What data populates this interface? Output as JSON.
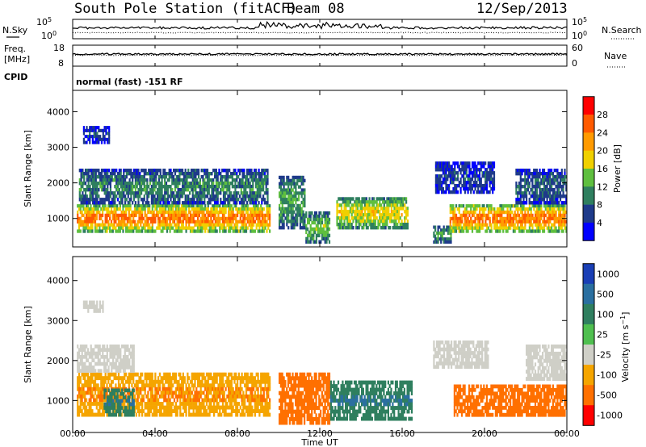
{
  "header": {
    "station": "South Pole Station (fitACF)",
    "beam": "Beam 08",
    "date": "12/Sep/2013"
  },
  "noise_panel": {
    "left_label": "N.Sky",
    "right_label": "N.Search",
    "ticks_left": [
      "10^5",
      "10^0"
    ],
    "ticks_right": [
      "10^5",
      "10^0"
    ]
  },
  "freq_panel": {
    "left_label_1": "Freq.",
    "left_label_2": "[MHz]",
    "right_label": "Nave",
    "ticks_left": [
      "18",
      "8"
    ],
    "ticks_right": [
      "60",
      "0"
    ]
  },
  "cpid": {
    "label": "CPID",
    "value": "normal (fast) -151 RF"
  },
  "chart_data": [
    {
      "type": "heatmap",
      "panel": "power",
      "title": "",
      "xlabel": "Time UT",
      "ylabel": "Slant Range [km]",
      "x_ticks": [
        "00:00",
        "04:00",
        "08:00",
        "12:00",
        "16:00",
        "20:00",
        "00:00"
      ],
      "xlim_hours": [
        0,
        24
      ],
      "y_ticks": [
        1000,
        2000,
        3000,
        4000
      ],
      "ylim": [
        200,
        4600
      ],
      "colorbar_label": "Power [dB]",
      "colorbar_ticks": [
        4,
        8,
        12,
        16,
        20,
        24,
        28
      ],
      "colorbar_range": [
        0,
        32
      ],
      "colorbar_colors": [
        "#0000ff",
        "#1e3a8a",
        "#2f7f5f",
        "#5fbf3f",
        "#f0d000",
        "#ff9a00",
        "#ff5a00",
        "#ff0000"
      ],
      "regions": [
        {
          "t0": 0.2,
          "t1": 9.6,
          "r0": 600,
          "r1": 1400,
          "level": 24
        },
        {
          "t0": 0.3,
          "t1": 9.5,
          "r0": 1400,
          "r1": 2400,
          "level": 10
        },
        {
          "t0": 0.5,
          "t1": 1.8,
          "r0": 3100,
          "r1": 3600,
          "level": 6
        },
        {
          "t0": 10.0,
          "t1": 11.3,
          "r0": 700,
          "r1": 2200,
          "level": 12
        },
        {
          "t0": 11.3,
          "t1": 12.5,
          "r0": 300,
          "r1": 1200,
          "level": 14
        },
        {
          "t0": 12.8,
          "t1": 16.3,
          "r0": 700,
          "r1": 1600,
          "level": 18
        },
        {
          "t0": 17.5,
          "t1": 18.4,
          "r0": 300,
          "r1": 800,
          "level": 12
        },
        {
          "t0": 17.6,
          "t1": 20.5,
          "r0": 1700,
          "r1": 2600,
          "level": 6
        },
        {
          "t0": 18.3,
          "t1": 24.0,
          "r0": 600,
          "r1": 1400,
          "level": 24
        },
        {
          "t0": 21.5,
          "t1": 24.0,
          "r0": 1400,
          "r1": 2400,
          "level": 8
        }
      ]
    },
    {
      "type": "heatmap",
      "panel": "velocity",
      "title": "",
      "xlabel": "Time UT",
      "ylabel": "Slant Range [km]",
      "x_ticks": [
        "00:00",
        "04:00",
        "08:00",
        "12:00",
        "16:00",
        "20:00",
        "00:00"
      ],
      "xlim_hours": [
        0,
        24
      ],
      "y_ticks": [
        1000,
        2000,
        3000,
        4000
      ],
      "ylim": [
        200,
        4600
      ],
      "colorbar_label": "Velocity [m s^-1]",
      "colorbar_ticks": [
        "1000",
        "500",
        "100",
        "25",
        "-25",
        "-100",
        "-500",
        "-1000"
      ],
      "colorbar_colors": [
        "#1a3fb5",
        "#2a6fa0",
        "#2f7f5f",
        "#4fbf4f",
        "#cfcfc7",
        "#f5a500",
        "#ff7000",
        "#ff0000"
      ],
      "regions": [
        {
          "t0": 0.2,
          "t1": 9.6,
          "r0": 600,
          "r1": 1700,
          "level": -100
        },
        {
          "t0": 0.2,
          "t1": 3.0,
          "r0": 1700,
          "r1": 2400,
          "level": 0
        },
        {
          "t0": 0.5,
          "t1": 1.5,
          "r0": 3200,
          "r1": 3500,
          "level": 0
        },
        {
          "t0": 1.5,
          "t1": 3.0,
          "r0": 600,
          "r1": 1300,
          "level": 100
        },
        {
          "t0": 10.0,
          "t1": 12.5,
          "r0": 400,
          "r1": 1700,
          "level": -300
        },
        {
          "t0": 12.5,
          "t1": 16.5,
          "r0": 500,
          "r1": 1500,
          "level": 100
        },
        {
          "t0": 17.5,
          "t1": 20.2,
          "r0": 1800,
          "r1": 2500,
          "level": 0
        },
        {
          "t0": 18.5,
          "t1": 24.0,
          "r0": 600,
          "r1": 1400,
          "level": -300
        },
        {
          "t0": 22.0,
          "t1": 24.0,
          "r0": 1500,
          "r1": 2400,
          "level": 0
        }
      ]
    }
  ]
}
